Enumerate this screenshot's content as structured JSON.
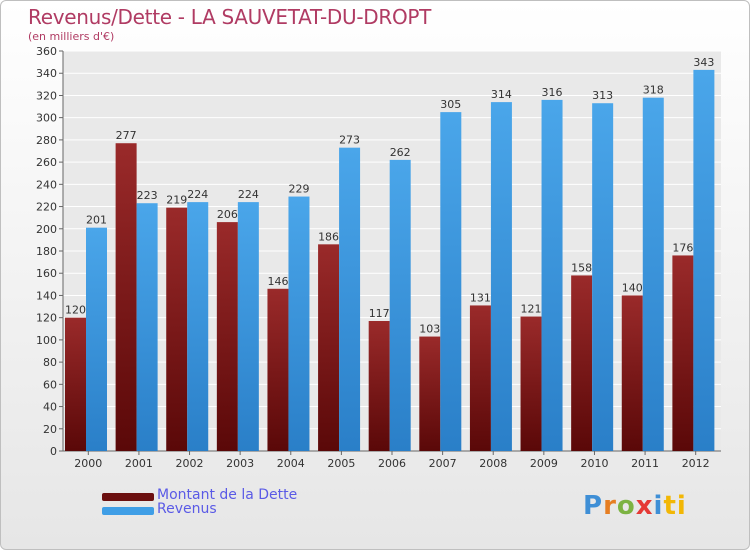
{
  "title": "Revenus/Dette - LA SAUVETAT-DU-DROPT",
  "subtitle": "(en milliers d'€)",
  "logo_text": [
    "P",
    "r",
    "o",
    "x",
    "i",
    "ti"
  ],
  "colors": {
    "dette": "#7a1515",
    "revenus": "#3f9ee6",
    "title": "#b03b63",
    "legend_text": "#5a5ae6"
  },
  "chart_data": {
    "type": "bar",
    "categories": [
      "2000",
      "2001",
      "2002",
      "2003",
      "2004",
      "2005",
      "2006",
      "2007",
      "2008",
      "2009",
      "2010",
      "2011",
      "2012"
    ],
    "series": [
      {
        "name": "Montant de la Dette",
        "values": [
          120,
          277,
          219,
          206,
          146,
          186,
          117,
          103,
          131,
          121,
          158,
          140,
          176
        ]
      },
      {
        "name": "Revenus",
        "values": [
          201,
          223,
          224,
          224,
          229,
          273,
          262,
          305,
          314,
          316,
          313,
          318,
          343
        ]
      }
    ],
    "yticks": [
      0,
      20,
      40,
      60,
      80,
      100,
      120,
      140,
      160,
      180,
      200,
      220,
      240,
      260,
      280,
      300,
      320,
      340,
      360
    ],
    "ylim": [
      0,
      360
    ],
    "grid": true,
    "legend": "bottom-left"
  }
}
